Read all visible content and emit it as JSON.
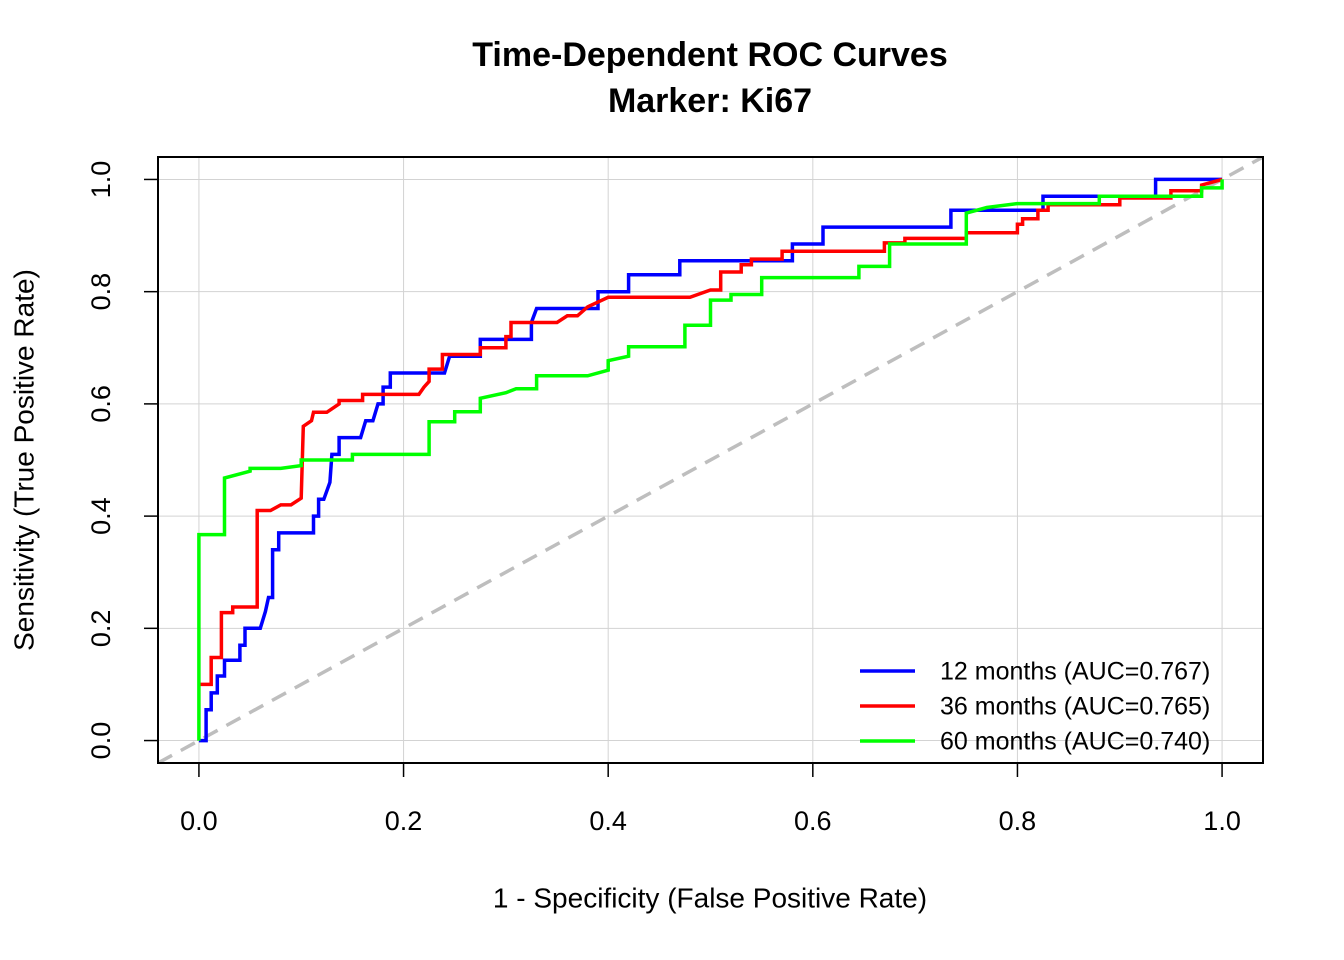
{
  "chart_data": {
    "type": "line",
    "title": "Time-Dependent ROC Curves",
    "subtitle": "Marker: Ki67",
    "x_label": "1 - Specificity (False Positive Rate)",
    "y_label": "Sensitivity (True Positive Rate)",
    "xlim": [
      -0.04,
      1.04
    ],
    "ylim": [
      -0.04,
      1.04
    ],
    "xticks": [
      {
        "value": 0,
        "label": "0.0"
      },
      0.2,
      0.4,
      0.6,
      0.8,
      {
        "value": 1,
        "label": "1.0"
      }
    ],
    "yticks": [
      {
        "value": 0,
        "label": "0.0"
      },
      0.2,
      0.4,
      0.6,
      0.8,
      {
        "value": 1,
        "label": "1.0"
      }
    ],
    "grid": true,
    "diagonal": true,
    "diagonal_color": "#bebebe",
    "legend": "bottom-right",
    "series": [
      {
        "name": "12 months (AUC=0.767)",
        "color": "#0000ff",
        "x": [
          0,
          0.007,
          0.007,
          0.012,
          0.012,
          0.018,
          0.018,
          0.025,
          0.025,
          0.04,
          0.04,
          0.045,
          0.045,
          0.06,
          0.065,
          0.068,
          0.072,
          0.072,
          0.078,
          0.078,
          0.112,
          0.112,
          0.117,
          0.117,
          0.122,
          0.128,
          0.13,
          0.137,
          0.137,
          0.158,
          0.163,
          0.17,
          0.175,
          0.18,
          0.18,
          0.187,
          0.187,
          0.24,
          0.245,
          0.275,
          0.275,
          0.325,
          0.325,
          0.33,
          0.39,
          0.39,
          0.42,
          0.42,
          0.47,
          0.47,
          0.58,
          0.58,
          0.61,
          0.61,
          0.735,
          0.735,
          0.825,
          0.825,
          0.935,
          0.935,
          1
        ],
        "values": [
          0,
          0,
          0.055,
          0.055,
          0.085,
          0.085,
          0.115,
          0.115,
          0.143,
          0.143,
          0.17,
          0.17,
          0.2,
          0.2,
          0.23,
          0.255,
          0.255,
          0.34,
          0.34,
          0.37,
          0.37,
          0.4,
          0.4,
          0.43,
          0.43,
          0.46,
          0.51,
          0.51,
          0.54,
          0.54,
          0.57,
          0.57,
          0.6,
          0.6,
          0.63,
          0.63,
          0.655,
          0.655,
          0.685,
          0.685,
          0.715,
          0.715,
          0.745,
          0.77,
          0.77,
          0.8,
          0.8,
          0.83,
          0.83,
          0.855,
          0.855,
          0.885,
          0.885,
          0.915,
          0.915,
          0.945,
          0.945,
          0.97,
          0.97,
          1,
          1
        ]
      },
      {
        "name": "36 months (AUC=0.765)",
        "color": "#ff0000",
        "x": [
          0,
          0.012,
          0.012,
          0.022,
          0.022,
          0.033,
          0.033,
          0.057,
          0.057,
          0.07,
          0.08,
          0.09,
          0.1,
          0.102,
          0.11,
          0.112,
          0.125,
          0.137,
          0.137,
          0.16,
          0.16,
          0.215,
          0.22,
          0.225,
          0.225,
          0.238,
          0.238,
          0.275,
          0.275,
          0.3,
          0.3,
          0.305,
          0.305,
          0.35,
          0.36,
          0.37,
          0.38,
          0.4,
          0.48,
          0.5,
          0.51,
          0.51,
          0.53,
          0.53,
          0.54,
          0.54,
          0.57,
          0.57,
          0.67,
          0.67,
          0.69,
          0.69,
          0.75,
          0.75,
          0.8,
          0.8,
          0.805,
          0.805,
          0.82,
          0.82,
          0.83,
          0.83,
          0.9,
          0.9,
          0.95,
          0.95,
          0.98,
          0.98,
          1
        ],
        "values": [
          0.1,
          0.1,
          0.148,
          0.148,
          0.228,
          0.228,
          0.238,
          0.238,
          0.41,
          0.41,
          0.42,
          0.42,
          0.432,
          0.56,
          0.57,
          0.585,
          0.585,
          0.6,
          0.606,
          0.606,
          0.617,
          0.617,
          0.63,
          0.64,
          0.662,
          0.662,
          0.688,
          0.688,
          0.7,
          0.7,
          0.72,
          0.72,
          0.745,
          0.745,
          0.757,
          0.757,
          0.773,
          0.79,
          0.79,
          0.803,
          0.803,
          0.835,
          0.835,
          0.848,
          0.848,
          0.858,
          0.858,
          0.872,
          0.872,
          0.887,
          0.887,
          0.895,
          0.895,
          0.905,
          0.905,
          0.92,
          0.92,
          0.93,
          0.93,
          0.945,
          0.945,
          0.955,
          0.955,
          0.967,
          0.967,
          0.98,
          0.98,
          0.99,
          1
        ]
      },
      {
        "name": "60 months (AUC=0.740)",
        "color": "#00ff00",
        "x": [
          0,
          0,
          0.025,
          0.025,
          0.05,
          0.05,
          0.08,
          0.1,
          0.1,
          0.15,
          0.15,
          0.225,
          0.225,
          0.25,
          0.25,
          0.275,
          0.275,
          0.3,
          0.31,
          0.33,
          0.33,
          0.38,
          0.4,
          0.4,
          0.42,
          0.42,
          0.475,
          0.475,
          0.5,
          0.5,
          0.52,
          0.52,
          0.55,
          0.55,
          0.645,
          0.645,
          0.675,
          0.675,
          0.75,
          0.75,
          0.77,
          0.8,
          0.88,
          0.88,
          0.98,
          0.98,
          1,
          1
        ],
        "values": [
          0,
          0.367,
          0.367,
          0.468,
          0.48,
          0.485,
          0.485,
          0.49,
          0.5,
          0.5,
          0.51,
          0.51,
          0.568,
          0.568,
          0.586,
          0.586,
          0.61,
          0.62,
          0.627,
          0.627,
          0.65,
          0.65,
          0.66,
          0.677,
          0.685,
          0.702,
          0.702,
          0.74,
          0.74,
          0.785,
          0.785,
          0.795,
          0.795,
          0.825,
          0.825,
          0.845,
          0.845,
          0.885,
          0.885,
          0.94,
          0.95,
          0.957,
          0.957,
          0.97,
          0.97,
          0.985,
          0.985,
          1
        ]
      }
    ]
  }
}
